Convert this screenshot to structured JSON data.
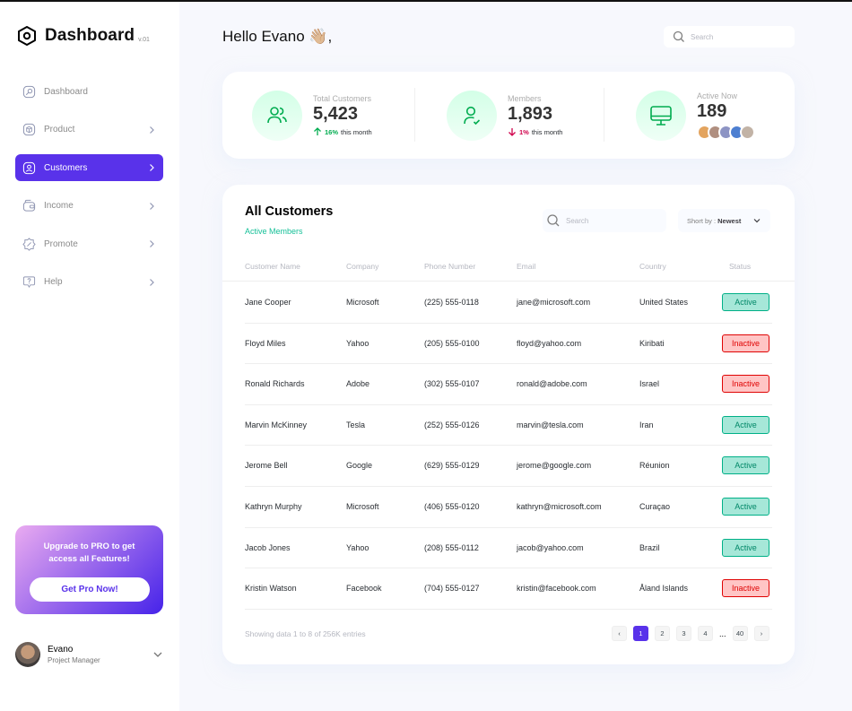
{
  "brand": {
    "title": "Dashboard",
    "version": "v.01"
  },
  "nav": [
    {
      "label": "Dashboard",
      "icon": "key-square-icon",
      "chevron": false,
      "active": false
    },
    {
      "label": "Product",
      "icon": "cube-icon",
      "chevron": true,
      "active": false
    },
    {
      "label": "Customers",
      "icon": "user-square-icon",
      "chevron": true,
      "active": true
    },
    {
      "label": "Income",
      "icon": "wallet-icon",
      "chevron": true,
      "active": false
    },
    {
      "label": "Promote",
      "icon": "discount-shape-icon",
      "chevron": true,
      "active": false
    },
    {
      "label": "Help",
      "icon": "message-question-icon",
      "chevron": true,
      "active": false
    }
  ],
  "promo": {
    "text": "Upgrade to PRO to get access all Features!",
    "button": "Get Pro Now!"
  },
  "profile": {
    "name": "Evano",
    "role": "Project Manager"
  },
  "header": {
    "greeting": "Hello Evano 👋🏼,",
    "search_placeholder": "Search"
  },
  "stats": {
    "total_customers": {
      "label": "Total Customers",
      "value": "5,423",
      "trend_value": "16%",
      "trend_text": "this month",
      "direction": "up"
    },
    "members": {
      "label": "Members",
      "value": "1,893",
      "trend_value": "1%",
      "trend_text": "this month",
      "direction": "down"
    },
    "active_now": {
      "label": "Active Now",
      "value": "189"
    }
  },
  "panel": {
    "title": "All Customers",
    "subtitle": "Active Members",
    "search_placeholder": "Search",
    "sort_label": "Short by :",
    "sort_value": "Newest",
    "columns": [
      "Customer Name",
      "Company",
      "Phone Number",
      "Email",
      "Country",
      "Status"
    ],
    "rows": [
      {
        "name": "Jane Cooper",
        "company": "Microsoft",
        "phone": "(225) 555-0118",
        "email": "jane@microsoft.com",
        "country": "United States",
        "status": "Active"
      },
      {
        "name": "Floyd Miles",
        "company": "Yahoo",
        "phone": "(205) 555-0100",
        "email": "floyd@yahoo.com",
        "country": "Kiribati",
        "status": "Inactive"
      },
      {
        "name": "Ronald Richards",
        "company": "Adobe",
        "phone": "(302) 555-0107",
        "email": "ronald@adobe.com",
        "country": "Israel",
        "status": "Inactive"
      },
      {
        "name": "Marvin McKinney",
        "company": "Tesla",
        "phone": "(252) 555-0126",
        "email": "marvin@tesla.com",
        "country": "Iran",
        "status": "Active"
      },
      {
        "name": "Jerome Bell",
        "company": "Google",
        "phone": "(629) 555-0129",
        "email": "jerome@google.com",
        "country": "Réunion",
        "status": "Active"
      },
      {
        "name": "Kathryn Murphy",
        "company": "Microsoft",
        "phone": "(406) 555-0120",
        "email": "kathryn@microsoft.com",
        "country": "Curaçao",
        "status": "Active"
      },
      {
        "name": "Jacob Jones",
        "company": "Yahoo",
        "phone": "(208) 555-0112",
        "email": "jacob@yahoo.com",
        "country": "Brazil",
        "status": "Active"
      },
      {
        "name": "Kristin Watson",
        "company": "Facebook",
        "phone": "(704) 555-0127",
        "email": "kristin@facebook.com",
        "country": "Åland Islands",
        "status": "Inactive"
      }
    ],
    "showing": "Showing data 1 to 8 of  256K entries",
    "pagination": {
      "prev": "‹",
      "pages": [
        "1",
        "2",
        "3",
        "4"
      ],
      "ellipsis": "...",
      "last": "40",
      "next": "›",
      "current": "1"
    }
  },
  "colors": {
    "accent": "#5932ea",
    "active": "#00b087",
    "inactive": "#df0404",
    "up": "#00ac4f",
    "down": "#d0004b"
  }
}
